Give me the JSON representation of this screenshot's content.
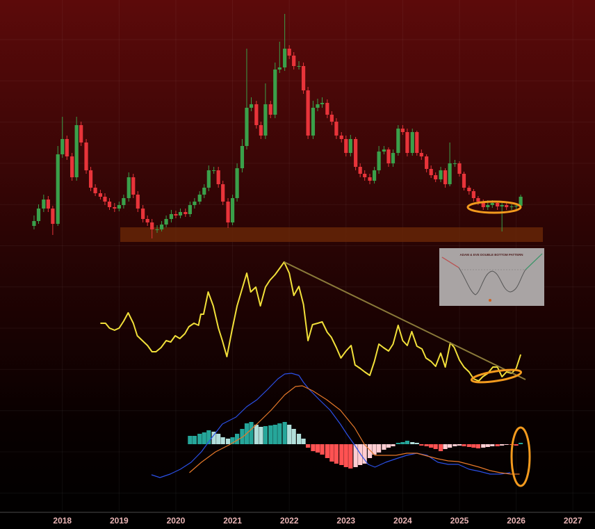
{
  "chart_data": [
    {
      "type": "candlestick",
      "xlim": [
        2016.9,
        2027.39
      ],
      "ylim": [
        0,
        360
      ],
      "up_color": "#3aa04a",
      "down_color": "#e8343a",
      "x": [
        2017.5,
        2017.58,
        2017.67,
        2017.75,
        2017.83,
        2017.92,
        2018.0,
        2018.08,
        2018.17,
        2018.25,
        2018.33,
        2018.42,
        2018.5,
        2018.58,
        2018.67,
        2018.75,
        2018.83,
        2018.92,
        2019.0,
        2019.08,
        2019.17,
        2019.25,
        2019.33,
        2019.42,
        2019.5,
        2019.58,
        2019.67,
        2019.75,
        2019.83,
        2019.92,
        2020.0,
        2020.08,
        2020.17,
        2020.25,
        2020.33,
        2020.42,
        2020.5,
        2020.58,
        2020.67,
        2020.75,
        2020.83,
        2020.92,
        2021.0,
        2021.08,
        2021.17,
        2021.25,
        2021.33,
        2021.42,
        2021.5,
        2021.58,
        2021.67,
        2021.75,
        2021.83,
        2021.92,
        2022.0,
        2022.08,
        2022.17,
        2022.25,
        2022.33,
        2022.42,
        2022.5,
        2022.58,
        2022.67,
        2022.75,
        2022.83,
        2022.92,
        2023.0,
        2023.08,
        2023.17,
        2023.25,
        2023.33,
        2023.42,
        2023.5,
        2023.58,
        2023.67,
        2023.75,
        2023.83,
        2023.92,
        2024.0,
        2024.08,
        2024.17,
        2024.25,
        2024.33,
        2024.42,
        2024.5,
        2024.58,
        2024.67,
        2024.75,
        2024.83,
        2024.92,
        2025.0,
        2025.08,
        2025.17,
        2025.25,
        2025.33,
        2025.42,
        2025.5,
        2025.58,
        2025.67,
        2025.75,
        2025.83,
        2025.92,
        2026.0,
        2026.08
      ],
      "open": [
        35,
        42,
        60,
        73,
        60,
        38,
        138,
        160,
        135,
        105,
        180,
        155,
        115,
        90,
        82,
        77,
        70,
        62,
        60,
        65,
        75,
        105,
        80,
        60,
        45,
        40,
        30,
        30,
        37,
        45,
        52,
        50,
        55,
        52,
        65,
        70,
        80,
        90,
        115,
        115,
        95,
        70,
        40,
        75,
        118,
        150,
        205,
        210,
        180,
        165,
        210,
        195,
        260,
        263,
        290,
        280,
        265,
        265,
        230,
        165,
        205,
        210,
        212,
        195,
        185,
        165,
        160,
        140,
        160,
        120,
        110,
        105,
        100,
        115,
        142,
        145,
        125,
        140,
        175,
        170,
        140,
        170,
        140,
        135,
        117,
        108,
        102,
        115,
        95,
        125,
        125,
        110,
        90,
        85,
        75,
        70,
        62,
        65,
        68,
        63,
        65,
        62,
        63,
        64
      ],
      "high": [
        50,
        66,
        80,
        78,
        64,
        150,
        192,
        165,
        140,
        192,
        185,
        160,
        120,
        95,
        87,
        82,
        75,
        68,
        70,
        80,
        112,
        110,
        85,
        65,
        50,
        45,
        36,
        42,
        50,
        58,
        57,
        60,
        60,
        70,
        75,
        85,
        95,
        122,
        120,
        120,
        100,
        75,
        80,
        125,
        160,
        290,
        220,
        215,
        185,
        240,
        215,
        270,
        300,
        340,
        295,
        285,
        272,
        270,
        235,
        215,
        218,
        220,
        217,
        200,
        190,
        170,
        165,
        166,
        163,
        125,
        115,
        110,
        120,
        150,
        150,
        148,
        145,
        180,
        180,
        175,
        175,
        172,
        145,
        138,
        122,
        112,
        120,
        118,
        155,
        130,
        128,
        113,
        93,
        88,
        78,
        73,
        72,
        72,
        70,
        68,
        68,
        66,
        67,
        80
      ],
      "low": [
        30,
        38,
        55,
        55,
        22,
        35,
        133,
        130,
        100,
        100,
        150,
        110,
        85,
        78,
        73,
        65,
        58,
        55,
        56,
        60,
        70,
        75,
        55,
        40,
        35,
        17,
        25,
        27,
        33,
        40,
        46,
        46,
        48,
        48,
        60,
        66,
        75,
        85,
        110,
        90,
        65,
        32,
        36,
        70,
        112,
        145,
        200,
        175,
        160,
        160,
        190,
        190,
        255,
        258,
        275,
        260,
        260,
        225,
        160,
        160,
        200,
        205,
        190,
        180,
        160,
        155,
        135,
        135,
        115,
        105,
        100,
        95,
        96,
        110,
        138,
        120,
        120,
        136,
        166,
        135,
        136,
        136,
        130,
        112,
        104,
        98,
        98,
        90,
        92,
        120,
        106,
        86,
        80,
        70,
        65,
        58,
        58,
        61,
        58,
        27,
        58,
        58,
        59,
        60
      ],
      "close": [
        42,
        60,
        73,
        60,
        38,
        138,
        160,
        135,
        105,
        180,
        155,
        115,
        90,
        82,
        77,
        70,
        62,
        60,
        65,
        75,
        105,
        80,
        60,
        45,
        40,
        30,
        30,
        37,
        45,
        52,
        50,
        55,
        52,
        65,
        70,
        80,
        90,
        115,
        115,
        95,
        70,
        40,
        75,
        118,
        150,
        205,
        210,
        180,
        165,
        210,
        195,
        260,
        263,
        290,
        280,
        265,
        265,
        230,
        165,
        205,
        210,
        212,
        195,
        185,
        165,
        160,
        140,
        160,
        120,
        110,
        105,
        100,
        115,
        142,
        145,
        125,
        140,
        175,
        170,
        140,
        170,
        140,
        135,
        117,
        108,
        102,
        115,
        95,
        125,
        125,
        110,
        90,
        85,
        75,
        70,
        62,
        65,
        68,
        63,
        65,
        62,
        63,
        64,
        77
      ]
    },
    {
      "type": "line",
      "xlim": [
        2016.9,
        2027.39
      ],
      "ylim": [
        0,
        200
      ],
      "x": [
        2018.67,
        2018.76,
        2018.83,
        2018.92,
        2019.0,
        2019.08,
        2019.16,
        2019.25,
        2019.32,
        2019.41,
        2019.5,
        2019.58,
        2019.65,
        2019.74,
        2019.83,
        2019.91,
        2019.99,
        2020.07,
        2020.16,
        2020.23,
        2020.32,
        2020.4,
        2020.44,
        2020.49,
        2020.57,
        2020.66,
        2020.75,
        2020.82,
        2020.9,
        2020.99,
        2021.08,
        2021.16,
        2021.25,
        2021.32,
        2021.41,
        2021.49,
        2021.58,
        2021.66,
        2021.75,
        2021.84,
        2021.91,
        2022.0,
        2022.08,
        2022.17,
        2022.25,
        2022.33,
        2022.41,
        2022.5,
        2022.58,
        2022.67,
        2022.74,
        2022.83,
        2022.91,
        2023.0,
        2023.09,
        2023.16,
        2023.25,
        2023.33,
        2023.42,
        2023.5,
        2023.58,
        2023.66,
        2023.75,
        2023.83,
        2023.92,
        2024.0,
        2024.08,
        2024.16,
        2024.25,
        2024.34,
        2024.41,
        2024.5,
        2024.58,
        2024.67,
        2024.75,
        2024.84,
        2024.91,
        2025.0,
        2025.08,
        2025.17,
        2025.25,
        2025.34,
        2025.41,
        2025.5,
        2025.59,
        2025.67,
        2025.75,
        2025.83,
        2025.92,
        2026.0,
        2026.08
      ],
      "series": [
        {
          "color": "#f2e03a",
          "values": [
            95,
            95,
            88,
            85,
            88,
            98,
            110,
            95,
            77,
            70,
            63,
            54,
            54,
            60,
            70,
            68,
            77,
            73,
            80,
            90,
            95,
            92,
            108,
            108,
            140,
            120,
            88,
            70,
            47,
            85,
            120,
            142,
            167,
            140,
            147,
            120,
            147,
            157,
            165,
            175,
            183,
            167,
            135,
            148,
            122,
            70,
            93,
            95,
            97,
            82,
            75,
            60,
            45,
            55,
            63,
            35,
            30,
            25,
            20,
            40,
            65,
            60,
            55,
            65,
            92,
            70,
            63,
            83,
            62,
            58,
            45,
            40,
            33,
            52,
            32,
            67,
            60,
            42,
            32,
            25,
            15,
            12,
            18,
            23,
            32,
            32,
            18,
            25,
            23,
            30,
            50
          ]
        }
      ]
    },
    {
      "type": "macd",
      "xlim": [
        2016.9,
        2027.39
      ],
      "ylim": [
        -101,
        119
      ],
      "xticks": [
        2018,
        2019,
        2020,
        2021,
        2022,
        2023,
        2024,
        2025,
        2026,
        2027
      ],
      "series": [
        {
          "type": "bar",
          "colors": [
            "#26a69a",
            "#b2dfdb",
            "#ff5252",
            "#ffcdd2"
          ],
          "x": [
            2020.25,
            2020.33,
            2020.42,
            2020.5,
            2020.58,
            2020.67,
            2020.75,
            2020.83,
            2020.92,
            2021.0,
            2021.08,
            2021.17,
            2021.25,
            2021.33,
            2021.42,
            2021.5,
            2021.58,
            2021.67,
            2021.75,
            2021.83,
            2021.92,
            2022.0,
            2022.08,
            2022.17,
            2022.25,
            2022.33,
            2022.42,
            2022.5,
            2022.58,
            2022.67,
            2022.75,
            2022.83,
            2022.92,
            2023.0,
            2023.08,
            2023.17,
            2023.25,
            2023.33,
            2023.42,
            2023.5,
            2023.58,
            2023.67,
            2023.75,
            2023.83,
            2023.92,
            2024.0,
            2024.08,
            2024.17,
            2024.25,
            2024.33,
            2024.42,
            2024.5,
            2024.58,
            2024.67,
            2024.75,
            2024.83,
            2024.92,
            2025.0,
            2025.08,
            2025.17,
            2025.25,
            2025.33,
            2025.42,
            2025.5,
            2025.58,
            2025.67,
            2025.75,
            2025.83,
            2025.92,
            2026.0,
            2026.08
          ],
          "values": [
            12,
            12,
            15,
            17,
            20,
            18,
            15,
            10,
            8,
            10,
            15,
            22,
            30,
            32,
            28,
            25,
            26,
            27,
            28,
            30,
            32,
            28,
            22,
            15,
            8,
            -5,
            -10,
            -12,
            -15,
            -20,
            -25,
            -28,
            -30,
            -33,
            -35,
            -33,
            -30,
            -28,
            -20,
            -15,
            -12,
            -8,
            -5,
            -3,
            2,
            3,
            5,
            3,
            2,
            -2,
            -3,
            -5,
            -7,
            -10,
            -7,
            -5,
            -3,
            -2,
            -3,
            -4,
            -5,
            -6,
            -5,
            -4,
            -3,
            -3,
            -2,
            -1,
            -1,
            -2,
            2
          ]
        },
        {
          "type": "line",
          "color": "#2b50e8",
          "x": [
            2019.57,
            2019.72,
            2019.9,
            2020.08,
            2020.27,
            2020.45,
            2020.63,
            2020.82,
            2021.06,
            2021.25,
            2021.43,
            2021.62,
            2021.8,
            2021.92,
            2022.04,
            2022.17,
            2022.25,
            2022.35,
            2022.53,
            2022.72,
            2022.9,
            2023.02,
            2023.15,
            2023.27,
            2023.39,
            2023.51,
            2023.7,
            2023.88,
            2024.07,
            2024.25,
            2024.43,
            2024.62,
            2024.8,
            2024.98,
            2025.17,
            2025.35,
            2025.54,
            2025.72,
            2025.9
          ],
          "values": [
            -44,
            -48,
            -43,
            -36,
            -26,
            -11,
            9,
            29,
            39,
            54,
            64,
            79,
            94,
            101,
            102,
            99,
            89,
            79,
            64,
            49,
            29,
            14,
            -1,
            -16,
            -29,
            -33,
            -26,
            -21,
            -16,
            -13,
            -16,
            -26,
            -29,
            -29,
            -36,
            -39,
            -43,
            -43,
            -41
          ]
        },
        {
          "type": "line",
          "color": "#e6782a",
          "x": [
            2020.24,
            2020.45,
            2020.7,
            2020.94,
            2021.19,
            2021.43,
            2021.68,
            2021.92,
            2022.11,
            2022.23,
            2022.41,
            2022.66,
            2022.9,
            2023.15,
            2023.33,
            2023.51,
            2023.7,
            2023.88,
            2024.07,
            2024.25,
            2024.43,
            2024.62,
            2024.8,
            2024.98,
            2025.17,
            2025.35,
            2025.54,
            2025.72,
            2025.9,
            2026.06
          ],
          "values": [
            -41,
            -26,
            -11,
            -1,
            11,
            29,
            49,
            71,
            83,
            84,
            77,
            64,
            49,
            24,
            -1,
            -16,
            -16,
            -16,
            -13,
            -13,
            -17,
            -21,
            -24,
            -25,
            -29,
            -33,
            -38,
            -41,
            -43,
            -43
          ]
        }
      ]
    }
  ],
  "inset": {
    "title": "ADAM & EVE DOUBLE BOTTOM PATTERN"
  }
}
